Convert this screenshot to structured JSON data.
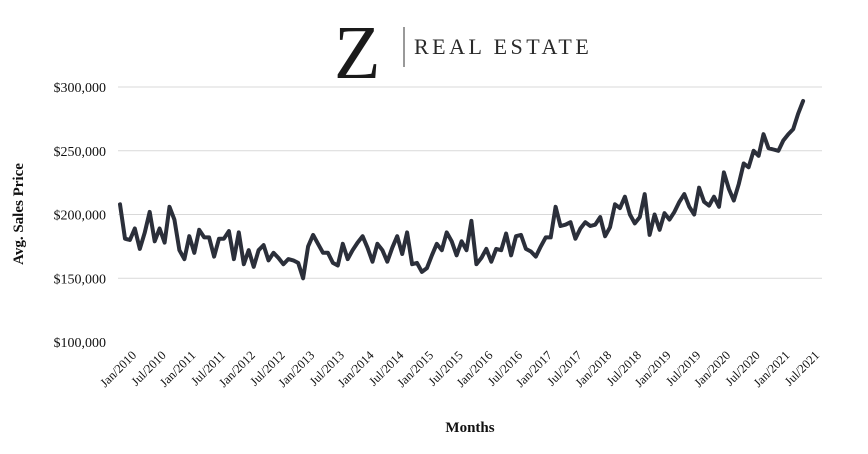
{
  "brand": {
    "logo_letter": "Z",
    "name": "REAL ESTATE"
  },
  "chart_data": {
    "type": "line",
    "xlabel": "Months",
    "ylabel": "Avg. Sales Price",
    "ylim": [
      100000,
      300000
    ],
    "yticks": [
      100000,
      150000,
      200000,
      250000,
      300000
    ],
    "ytick_labels": [
      "$100,000",
      "$150,000",
      "$200,000",
      "$250,000",
      "$300,000"
    ],
    "xtick_labels": [
      "Jan/2010",
      "Jul/2010",
      "Jan/2011",
      "Jul/2011",
      "Jan/2012",
      "Jul/2012",
      "Jan/2013",
      "Jul/2013",
      "Jan/2014",
      "Jul/2014",
      "Jan/2015",
      "Jul/2015",
      "Jan/2016",
      "Jul/2016",
      "Jan/2017",
      "Jul/2017",
      "Jan/2018",
      "Jul/2018",
      "Jan/2019",
      "Jul/2019",
      "Jan/2020",
      "Jul/2020",
      "Jan/2021",
      "Jul/2021"
    ],
    "grid": true,
    "line_color": "#2b2f3a",
    "series": [
      {
        "x_start": "Jan/2010",
        "frequency": "monthly",
        "values": [
          208000,
          181000,
          180000,
          189000,
          173000,
          186000,
          202000,
          179000,
          189000,
          178000,
          206000,
          196000,
          172000,
          165000,
          183000,
          170000,
          188000,
          182000,
          182000,
          167000,
          181000,
          181000,
          187000,
          165000,
          186000,
          161000,
          172000,
          159000,
          172000,
          176000,
          164000,
          170000,
          166000,
          161000,
          165000,
          164000,
          162000,
          150000,
          175000,
          184000,
          177000,
          170000,
          170000,
          162000,
          160000,
          177000,
          165000,
          172000,
          178000,
          183000,
          174000,
          163000,
          177000,
          172000,
          163000,
          174000,
          183000,
          169000,
          186000,
          161000,
          162000,
          155000,
          158000,
          168000,
          177000,
          172000,
          186000,
          179000,
          168000,
          179000,
          172000,
          195000,
          161000,
          166000,
          173000,
          163000,
          173000,
          172000,
          185000,
          168000,
          183000,
          184000,
          173000,
          171000,
          167000,
          175000,
          182000,
          182000,
          206000,
          191000,
          192000,
          194000,
          181000,
          189000,
          194000,
          191000,
          192000,
          198000,
          183000,
          190000,
          208000,
          205000,
          214000,
          200000,
          193000,
          198000,
          216000,
          184000,
          200000,
          188000,
          201000,
          196000,
          202000,
          210000,
          216000,
          206000,
          200000,
          221000,
          210000,
          207000,
          214000,
          206000,
          233000,
          220000,
          211000,
          224000,
          240000,
          237000,
          250000,
          246000,
          263000,
          252000,
          251000,
          250000,
          258000,
          263000,
          267000,
          279000,
          289000
        ]
      }
    ]
  }
}
